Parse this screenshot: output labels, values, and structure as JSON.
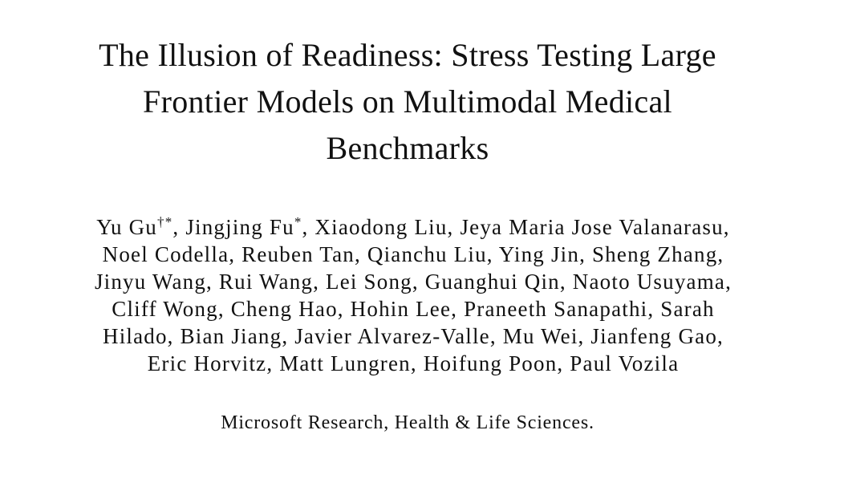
{
  "title_lines": [
    "The Illusion of Readiness: Stress Testing Large",
    "Frontier Models on Multimodal Medical",
    "Benchmarks"
  ],
  "authors": {
    "first_line": {
      "a1": "Yu Gu",
      "a1_mark": "†*",
      "a2": ", Jingjing Fu",
      "a2_mark": "*",
      "rest": ", Xiaodong Liu, Jeya Maria Jose Valanarasu,"
    },
    "lines": [
      "Noel Codella, Reuben Tan, Qianchu Liu, Ying Jin, Sheng Zhang,",
      "Jinyu Wang, Rui Wang, Lei Song, Guanghui Qin, Naoto Usuyama,",
      "Cliff Wong, Cheng Hao, Hohin Lee, Praneeth Sanapathi, Sarah",
      "Hilado, Bian Jiang, Javier Alvarez-Valle, Mu Wei, Jianfeng Gao,",
      "Eric Horvitz, Matt Lungren, Hoifung Poon, Paul Vozila"
    ]
  },
  "affiliation": "Microsoft Research, Health & Life Sciences."
}
